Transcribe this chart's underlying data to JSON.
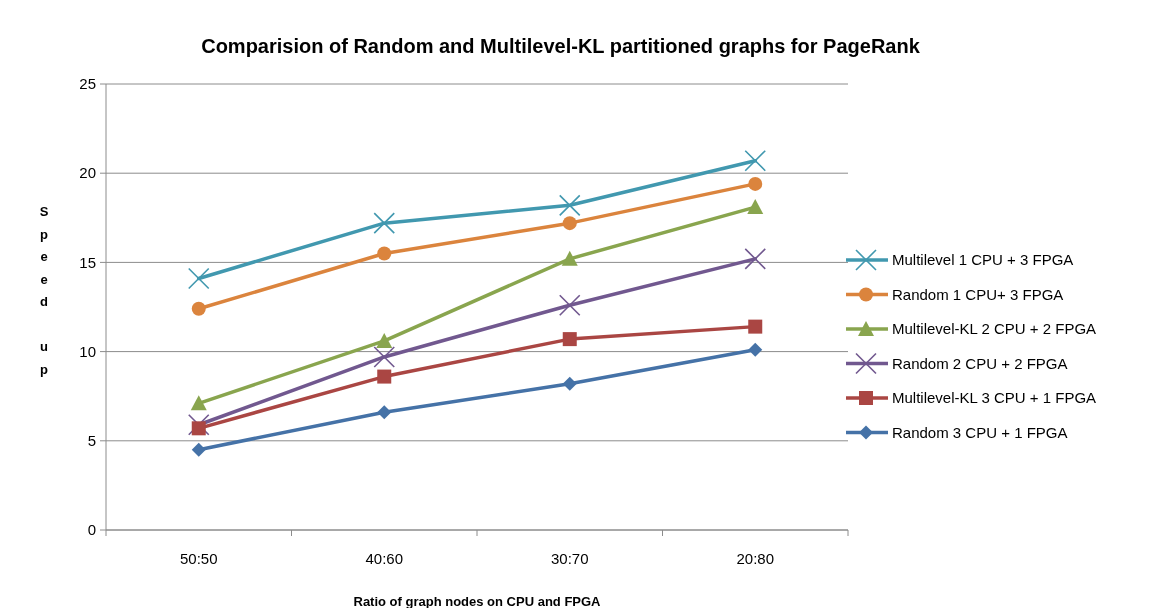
{
  "chart_data": {
    "type": "line",
    "title": "Comparision of Random and Multilevel-KL partitioned graphs for PageRank",
    "xlabel": "Ratio of graph nodes on CPU and FPGA",
    "ylabel": "Speed up",
    "categories": [
      "50:50",
      "40:60",
      "30:70",
      "20:80"
    ],
    "ylim": [
      0,
      25
    ],
    "yticks": [
      0,
      5,
      10,
      15,
      20,
      25
    ],
    "grid": "y",
    "legend": "right",
    "series": [
      {
        "name": "Multilevel 1 CPU + 3 FPGA",
        "color": "#4198af",
        "marker": "cross",
        "values": [
          14.1,
          17.2,
          18.2,
          20.7
        ]
      },
      {
        "name": "Random 1 CPU+ 3  FPGA",
        "color": "#db843d",
        "marker": "circle",
        "values": [
          12.4,
          15.5,
          17.2,
          19.4
        ]
      },
      {
        "name": "Multilevel-KL 2 CPU + 2 FPGA",
        "color": "#89a54e",
        "marker": "triangle",
        "values": [
          7.1,
          10.6,
          15.2,
          18.1
        ]
      },
      {
        "name": "Random 2 CPU + 2 FPGA",
        "color": "#71588f",
        "marker": "cross",
        "values": [
          5.9,
          9.7,
          12.6,
          15.2
        ]
      },
      {
        "name": "Multilevel-KL 3 CPU + 1 FPGA",
        "color": "#aa4643",
        "marker": "square",
        "values": [
          5.7,
          8.6,
          10.7,
          11.4
        ]
      },
      {
        "name": "Random 3 CPU + 1 FPGA",
        "color": "#4572a7",
        "marker": "diamond",
        "values": [
          4.5,
          6.6,
          8.2,
          10.1
        ]
      }
    ]
  }
}
